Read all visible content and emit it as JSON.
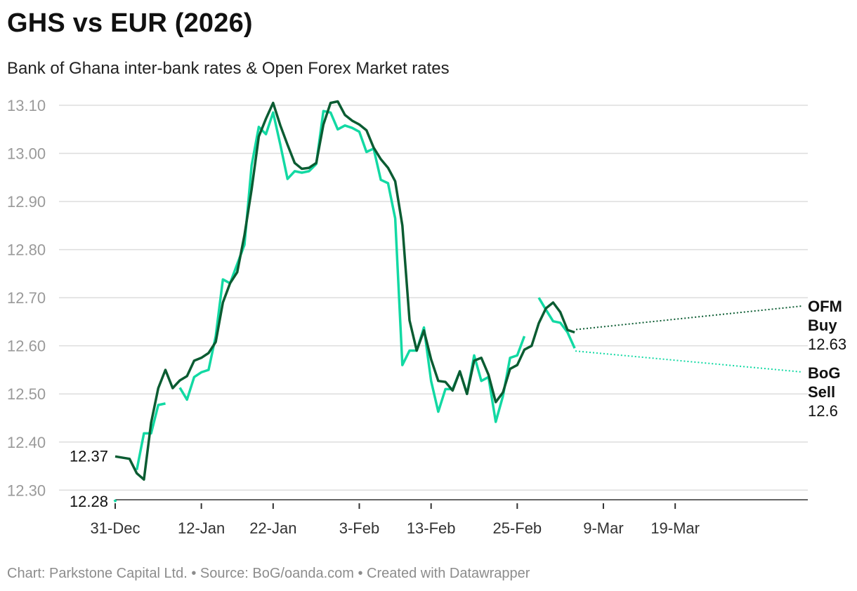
{
  "title": "GHS vs EUR (2026)",
  "subtitle": "Bank of Ghana inter-bank rates & Open Forex Market rates",
  "footer": "Chart: Parkstone Capital Ltd. • Source: BoG/oanda.com • Created with Datawrapper",
  "chart_data": {
    "type": "line",
    "x_axis": {
      "kind": "date",
      "range": [
        "2025-12-31",
        "2026-03-31"
      ],
      "tick_labels": [
        "31-Dec",
        "12-Jan",
        "22-Jan",
        "3-Feb",
        "13-Feb",
        "25-Feb",
        "9-Mar",
        "19-Mar"
      ],
      "tick_dates": [
        "2025-12-31",
        "2026-01-12",
        "2026-01-22",
        "2026-02-03",
        "2026-02-13",
        "2026-02-25",
        "2026-03-09",
        "2026-03-19"
      ]
    },
    "y_axis": {
      "range": [
        12.28,
        13.11
      ],
      "tick_labels": [
        "12.30",
        "12.40",
        "12.50",
        "12.60",
        "12.70",
        "12.80",
        "12.90",
        "13.00",
        "13.10"
      ],
      "ticks": [
        12.3,
        12.4,
        12.5,
        12.6,
        12.7,
        12.8,
        12.9,
        13.0,
        13.1
      ]
    },
    "grid": "horizontal",
    "series": [
      {
        "name": "OFM Buy",
        "color": "#0b5c32",
        "start_label": "12.37",
        "end_value_label": "12.63",
        "label_lines": [
          "OFM",
          "Buy"
        ],
        "points": [
          [
            "2025-12-31",
            12.37
          ],
          [
            "2026-01-02",
            12.365
          ],
          [
            "2026-01-03",
            12.335
          ],
          [
            "2026-01-04",
            12.322
          ],
          [
            "2026-01-05",
            12.44
          ],
          [
            "2026-01-06",
            12.512
          ],
          [
            "2026-01-07",
            12.55
          ],
          [
            "2026-01-08",
            12.512
          ],
          [
            "2026-01-09",
            12.528
          ],
          [
            "2026-01-10",
            12.537
          ],
          [
            "2026-01-11",
            12.569
          ],
          [
            "2026-01-12",
            12.575
          ],
          [
            "2026-01-13",
            12.585
          ],
          [
            "2026-01-14",
            12.608
          ],
          [
            "2026-01-15",
            12.69
          ],
          [
            "2026-01-16",
            12.73
          ],
          [
            "2026-01-17",
            12.753
          ],
          [
            "2026-01-18",
            12.83
          ],
          [
            "2026-01-19",
            12.925
          ],
          [
            "2026-01-20",
            13.035
          ],
          [
            "2026-01-21",
            13.072
          ],
          [
            "2026-01-22",
            13.105
          ],
          [
            "2026-01-23",
            13.058
          ],
          [
            "2026-01-24",
            13.018
          ],
          [
            "2026-01-25",
            12.98
          ],
          [
            "2026-01-26",
            12.968
          ],
          [
            "2026-01-27",
            12.97
          ],
          [
            "2026-01-28",
            12.98
          ],
          [
            "2026-01-29",
            13.06
          ],
          [
            "2026-01-30",
            13.105
          ],
          [
            "2026-01-31",
            13.108
          ],
          [
            "2026-02-01",
            13.08
          ],
          [
            "2026-02-02",
            13.068
          ],
          [
            "2026-02-03",
            13.06
          ],
          [
            "2026-02-04",
            13.048
          ],
          [
            "2026-02-05",
            13.012
          ],
          [
            "2026-02-06",
            12.988
          ],
          [
            "2026-02-07",
            12.97
          ],
          [
            "2026-02-08",
            12.942
          ],
          [
            "2026-02-09",
            12.85
          ],
          [
            "2026-02-10",
            12.653
          ],
          [
            "2026-02-11",
            12.59
          ],
          [
            "2026-02-12",
            12.632
          ],
          [
            "2026-02-13",
            12.572
          ],
          [
            "2026-02-14",
            12.527
          ],
          [
            "2026-02-15",
            12.525
          ],
          [
            "2026-02-16",
            12.507
          ],
          [
            "2026-02-17",
            12.547
          ],
          [
            "2026-02-18",
            12.5
          ],
          [
            "2026-02-19",
            12.569
          ],
          [
            "2026-02-20",
            12.575
          ],
          [
            "2026-02-21",
            12.54
          ],
          [
            "2026-02-22",
            12.483
          ],
          [
            "2026-02-23",
            12.503
          ],
          [
            "2026-02-24",
            12.552
          ],
          [
            "2026-02-25",
            12.56
          ],
          [
            "2026-02-26",
            12.592
          ],
          [
            "2026-02-27",
            12.6
          ],
          [
            "2026-02-28",
            12.647
          ],
          [
            "2026-03-01",
            12.678
          ],
          [
            "2026-03-02",
            12.69
          ],
          [
            "2026-03-03",
            12.67
          ],
          [
            "2026-03-04",
            12.633
          ],
          [
            "2026-03-05",
            12.628
          ]
        ]
      },
      {
        "name": "BoG Sell",
        "color": "#12d9a3",
        "start_label": "12.28",
        "end_value_label": "12.6",
        "label_lines": [
          "BoG",
          "Sell"
        ],
        "segments": [
          [
            [
              "2025-12-31",
              12.28
            ]
          ],
          [
            [
              "2026-01-03",
              12.342
            ],
            [
              "2026-01-04",
              12.418
            ],
            [
              "2026-01-05",
              12.418
            ],
            [
              "2026-01-06",
              12.477
            ],
            [
              "2026-01-07",
              12.48
            ]
          ],
          [
            [
              "2026-01-09",
              12.513
            ],
            [
              "2026-01-10",
              12.488
            ],
            [
              "2026-01-11",
              12.535
            ],
            [
              "2026-01-12",
              12.545
            ],
            [
              "2026-01-13",
              12.55
            ],
            [
              "2026-01-14",
              12.62
            ],
            [
              "2026-01-15",
              12.738
            ],
            [
              "2026-01-16",
              12.73
            ],
            [
              "2026-01-17",
              12.77
            ],
            [
              "2026-01-18",
              12.81
            ],
            [
              "2026-01-19",
              12.975
            ],
            [
              "2026-01-20",
              13.055
            ],
            [
              "2026-01-21",
              13.04
            ],
            [
              "2026-01-22",
              13.085
            ],
            [
              "2026-01-23",
              13.018
            ],
            [
              "2026-01-24",
              12.947
            ],
            [
              "2026-01-25",
              12.963
            ],
            [
              "2026-01-26",
              12.96
            ],
            [
              "2026-01-27",
              12.963
            ],
            [
              "2026-01-28",
              12.978
            ],
            [
              "2026-01-29",
              13.088
            ],
            [
              "2026-01-30",
              13.085
            ],
            [
              "2026-01-31",
              13.05
            ],
            [
              "2026-02-01",
              13.058
            ],
            [
              "2026-02-02",
              13.053
            ],
            [
              "2026-02-03",
              13.045
            ],
            [
              "2026-02-04",
              13.003
            ],
            [
              "2026-02-05",
              13.01
            ],
            [
              "2026-02-06",
              12.945
            ],
            [
              "2026-02-07",
              12.938
            ],
            [
              "2026-02-08",
              12.865
            ],
            [
              "2026-02-09",
              12.56
            ],
            [
              "2026-02-10",
              12.59
            ],
            [
              "2026-02-11",
              12.59
            ],
            [
              "2026-02-12",
              12.638
            ],
            [
              "2026-02-13",
              12.527
            ],
            [
              "2026-02-14",
              12.463
            ],
            [
              "2026-02-15",
              12.51
            ],
            [
              "2026-02-16",
              12.51
            ],
            [
              "2026-02-17",
              12.547
            ],
            [
              "2026-02-18",
              12.5
            ],
            [
              "2026-02-19",
              12.58
            ],
            [
              "2026-02-20",
              12.527
            ],
            [
              "2026-02-21",
              12.535
            ],
            [
              "2026-02-22",
              12.442
            ],
            [
              "2026-02-23",
              12.495
            ],
            [
              "2026-02-24",
              12.575
            ],
            [
              "2026-02-25",
              12.58
            ],
            [
              "2026-02-26",
              12.62
            ]
          ],
          [
            [
              "2026-02-28",
              12.7
            ],
            [
              "2026-03-01",
              12.675
            ],
            [
              "2026-03-02",
              12.651
            ],
            [
              "2026-03-03",
              12.648
            ],
            [
              "2026-03-04",
              12.628
            ],
            [
              "2026-03-05",
              12.595
            ]
          ]
        ]
      }
    ]
  }
}
